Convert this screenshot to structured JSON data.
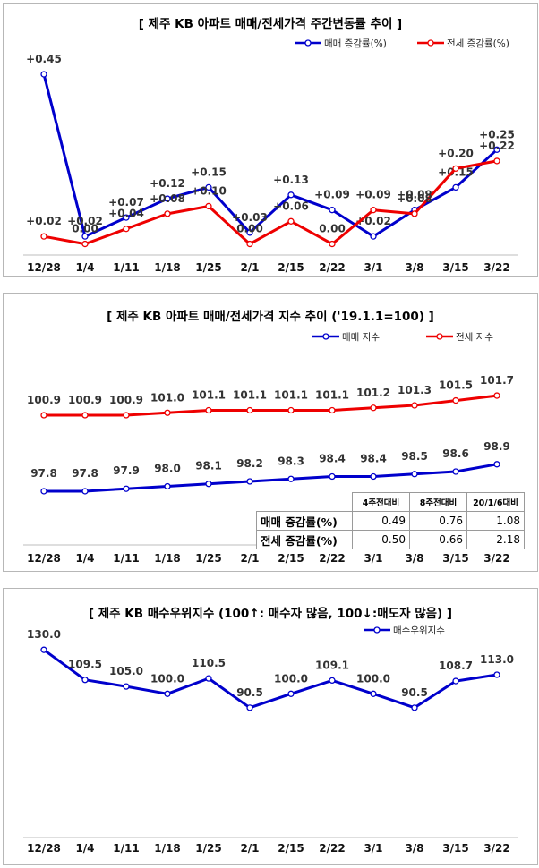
{
  "charts": {
    "weekly_change": {
      "title": "[  제주  KB 아파트 매매/전세가격 주간변동률 추이  ]"
    },
    "price_index": {
      "title": "[  제주  KB 아파트 매매/전세가격 지수 추이 ('19.1.1=100)  ]",
      "table": {
        "headers": [
          "4주전대비",
          "8주전대비",
          "20/1/6대비"
        ],
        "rows": [
          {
            "label": "매매 증감률(%)",
            "values": [
              "0.49",
              "0.76",
              "1.08"
            ]
          },
          {
            "label": "전세 증감률(%)",
            "values": [
              "0.50",
              "0.66",
              "2.18"
            ]
          }
        ]
      }
    },
    "buyer_index": {
      "title": "[  제주  KB 매수우위지수 (100↑: 매수자 많음, 100↓:매도자 많음)  ]"
    }
  },
  "chart_data": [
    {
      "type": "line",
      "title": "[  제주  KB 아파트 매매/전세가격 주간변동률 추이  ]",
      "categories": [
        "12/28",
        "1/4",
        "1/11",
        "1/18",
        "1/25",
        "2/1",
        "2/15",
        "2/22",
        "3/1",
        "3/8",
        "3/15",
        "3/22"
      ],
      "series": [
        {
          "name": "매매 증감률(%)",
          "color": "#0000cc",
          "values": [
            0.45,
            0.02,
            0.07,
            0.12,
            0.15,
            0.03,
            0.13,
            0.09,
            0.02,
            0.09,
            0.15,
            0.25
          ]
        },
        {
          "name": "전세 증감률(%)",
          "color": "#ee0000",
          "values": [
            0.02,
            0.0,
            0.04,
            0.08,
            0.1,
            0.0,
            0.06,
            0.0,
            0.09,
            0.08,
            0.2,
            0.22
          ]
        }
      ],
      "ylim": [
        -0.02,
        0.5
      ],
      "legend": "top-right",
      "grid": false
    },
    {
      "type": "line",
      "title": "[  제주  KB 아파트 매매/전세가격 지수 추이 ('19.1.1=100)  ]",
      "categories": [
        "12/28",
        "1/4",
        "1/11",
        "1/18",
        "1/25",
        "2/1",
        "2/15",
        "2/22",
        "3/1",
        "3/8",
        "3/15",
        "3/22"
      ],
      "series": [
        {
          "name": "매매 지수",
          "color": "#0000cc",
          "values": [
            97.8,
            97.8,
            97.9,
            98.0,
            98.1,
            98.2,
            98.3,
            98.4,
            98.4,
            98.5,
            98.6,
            98.9
          ]
        },
        {
          "name": "전세 지수",
          "color": "#ee0000",
          "values": [
            100.9,
            100.9,
            100.9,
            101.0,
            101.1,
            101.1,
            101.1,
            101.1,
            101.2,
            101.3,
            101.5,
            101.7
          ]
        }
      ],
      "ylim": [
        95.5,
        103.6
      ],
      "legend": "top-right",
      "grid": false
    },
    {
      "type": "line",
      "title": "[  제주  KB 매수우위지수 (100↑: 매수자 많음, 100↓:매도자 많음)  ]",
      "categories": [
        "12/28",
        "1/4",
        "1/11",
        "1/18",
        "1/25",
        "2/1",
        "2/15",
        "2/22",
        "3/1",
        "3/8",
        "3/15",
        "3/22"
      ],
      "series": [
        {
          "name": "매수우위지수",
          "color": "#0000cc",
          "values": [
            130.0,
            109.5,
            105.0,
            100.0,
            110.5,
            90.5,
            100.0,
            109.1,
            100.0,
            90.5,
            108.7,
            113.0
          ]
        }
      ],
      "ylim": [
        0,
        135
      ],
      "legend": "top-right",
      "grid": false
    }
  ]
}
